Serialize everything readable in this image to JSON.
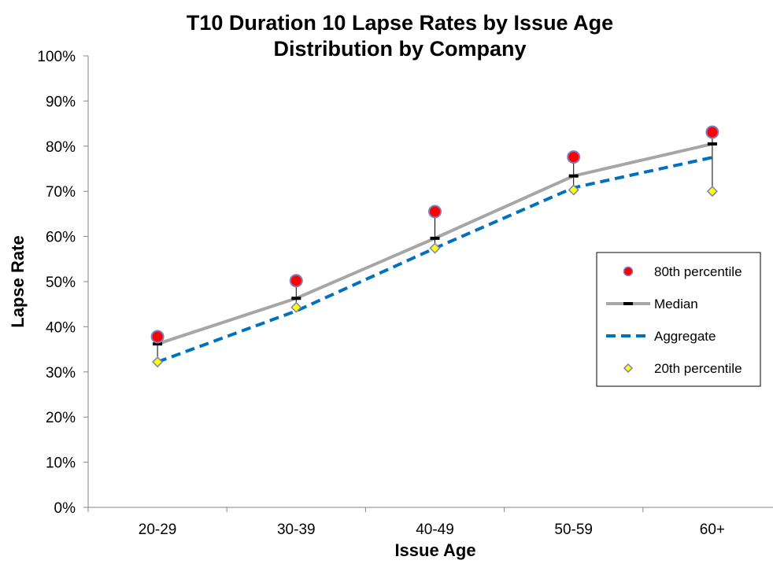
{
  "chart_data": {
    "type": "line",
    "title": "T10 Duration 10 Lapse Rates by Issue Age",
    "subtitle": "Distribution by Company",
    "xlabel": "Issue Age",
    "ylabel": "Lapse Rate",
    "categories": [
      "20-29",
      "30-39",
      "40-49",
      "50-59",
      "60+"
    ],
    "ylim": [
      0,
      1
    ],
    "yticks": [
      "0%",
      "10%",
      "20%",
      "30%",
      "40%",
      "50%",
      "60%",
      "70%",
      "80%",
      "90%",
      "100%"
    ],
    "grid": false,
    "legend_position": "right",
    "series": [
      {
        "name": "80th percentile",
        "style": "marker-circle",
        "color": "#ff0000",
        "edge": "#7f7fbf",
        "values": [
          0.378,
          0.502,
          0.655,
          0.776,
          0.831
        ]
      },
      {
        "name": "Median",
        "style": "line-solid-with-dash-marker",
        "color": "#a6a6a6",
        "marker_color": "#000000",
        "values": [
          0.362,
          0.463,
          0.596,
          0.734,
          0.805
        ]
      },
      {
        "name": "Aggregate",
        "style": "line-dashed",
        "color": "#0070c0",
        "values": [
          0.322,
          0.435,
          0.574,
          0.708,
          0.775
        ]
      },
      {
        "name": "20th percentile",
        "style": "marker-diamond",
        "color": "#ffff00",
        "edge": "#7f7fbf",
        "values": [
          0.322,
          0.443,
          0.574,
          0.703,
          0.7
        ]
      }
    ]
  }
}
